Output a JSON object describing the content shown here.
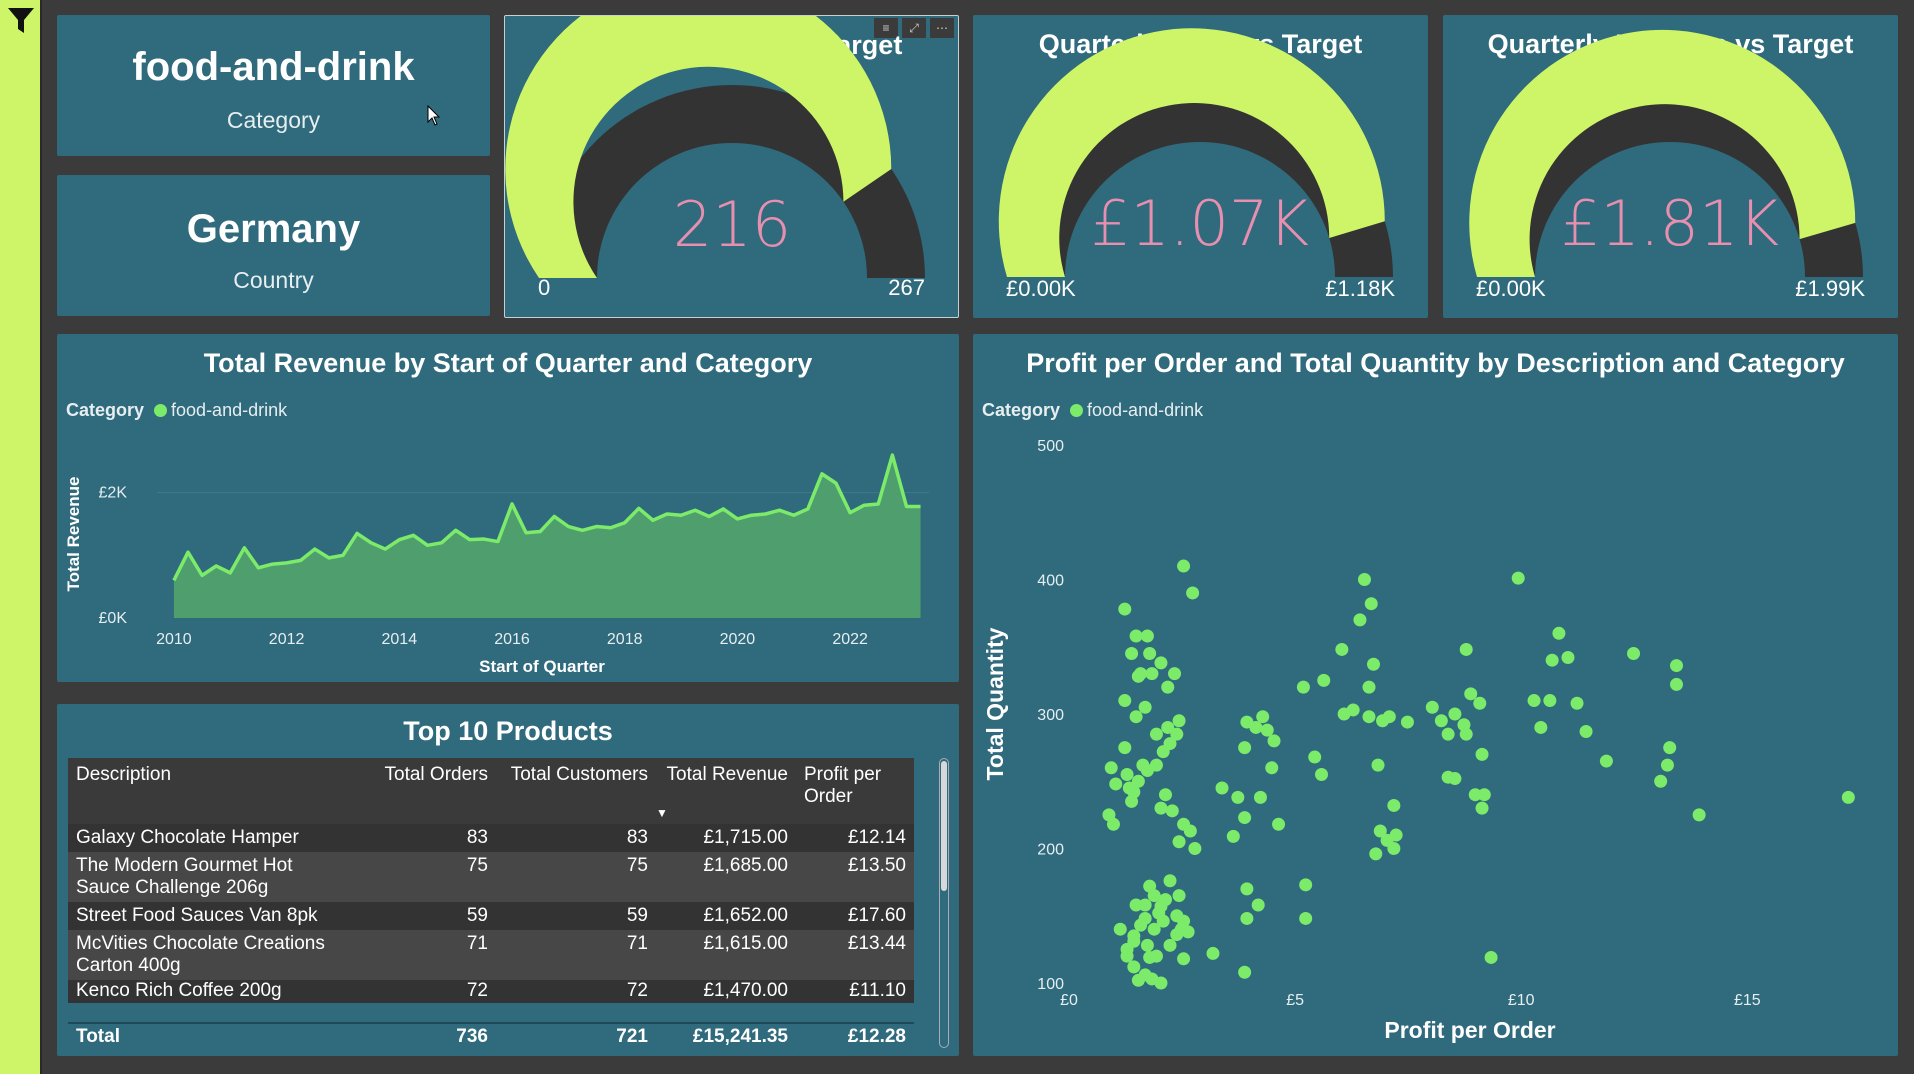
{
  "kpi": {
    "category_value": "food-and-drink",
    "category_label": "Category",
    "country_value": "Germany",
    "country_label": "Country"
  },
  "gauges": [
    {
      "title": "Quarterly Orders vs Target",
      "value_text": "216",
      "min_text": "0",
      "max_text": "267",
      "value": 216,
      "min": 0,
      "max": 267
    },
    {
      "title": "Quarterly Profit vs Target",
      "value_text": "£1.07K",
      "min_text": "£0.00K",
      "max_text": "£1.18K",
      "value": 1.07,
      "min": 0,
      "max": 1.18
    },
    {
      "title": "Quarterly Revenue vs Target",
      "value_text": "£1.81K",
      "min_text": "£0.00K",
      "max_text": "£1.99K",
      "value": 1.81,
      "min": 0,
      "max": 1.99
    }
  ],
  "colors": {
    "accent": "#cdf567",
    "card": "#2f6a7d",
    "series": "#7ceb6a",
    "area": "#4f9e6e",
    "gauge_bg": "#333333",
    "value_pink": "#e68fae"
  },
  "area_chart": {
    "title": "Total Revenue by Start of Quarter and Category",
    "legend_title": "Category",
    "legend_item": "food-and-drink",
    "chart_data": {
      "type": "area",
      "xlabel": "Start of Quarter",
      "ylabel": "Total Revenue",
      "x_ticks": [
        "2010",
        "2012",
        "2014",
        "2016",
        "2018",
        "2020",
        "2022"
      ],
      "y_ticks": [
        "£0K",
        "£2K"
      ],
      "ylim": [
        0,
        3000
      ],
      "xlim": [
        2010,
        2023.25
      ],
      "x": [
        2010.0,
        2010.25,
        2010.5,
        2010.75,
        2011.0,
        2011.25,
        2011.5,
        2011.75,
        2012.0,
        2012.25,
        2012.5,
        2012.75,
        2013.0,
        2013.25,
        2013.5,
        2013.75,
        2014.0,
        2014.25,
        2014.5,
        2014.75,
        2015.0,
        2015.25,
        2015.5,
        2015.75,
        2016.0,
        2016.25,
        2016.5,
        2016.75,
        2017.0,
        2017.25,
        2017.5,
        2017.75,
        2018.0,
        2018.25,
        2018.5,
        2018.75,
        2019.0,
        2019.25,
        2019.5,
        2019.75,
        2020.0,
        2020.25,
        2020.5,
        2020.75,
        2021.0,
        2021.25,
        2021.5,
        2021.75,
        2022.0,
        2022.25,
        2022.5,
        2022.75,
        2023.0,
        2023.25
      ],
      "series": [
        {
          "name": "food-and-drink",
          "values": [
            600,
            1050,
            680,
            830,
            720,
            1120,
            800,
            860,
            880,
            920,
            1100,
            960,
            1000,
            1350,
            1200,
            1100,
            1250,
            1320,
            1160,
            1200,
            1400,
            1250,
            1260,
            1220,
            1820,
            1360,
            1380,
            1620,
            1460,
            1400,
            1460,
            1440,
            1520,
            1750,
            1560,
            1660,
            1640,
            1720,
            1620,
            1740,
            1580,
            1640,
            1660,
            1720,
            1640,
            1740,
            2300,
            2150,
            1680,
            1800,
            1820,
            2600,
            1780,
            1780
          ]
        }
      ]
    }
  },
  "scatter": {
    "title": "Profit per Order and Total Quantity by Description and Category",
    "legend_title": "Category",
    "legend_item": "food-and-drink",
    "chart_data": {
      "type": "scatter",
      "xlabel": "Profit per Order",
      "ylabel": "Total Quantity",
      "x_ticks": [
        "£0",
        "£5",
        "£10",
        "£15"
      ],
      "y_ticks": [
        "100",
        "200",
        "300",
        "400",
        "500"
      ],
      "xlim": [
        0,
        18
      ],
      "ylim": [
        100,
        500
      ],
      "points": [
        [
          1.1,
          248
        ],
        [
          1.05,
          218
        ],
        [
          1.3,
          378
        ],
        [
          1.55,
          358
        ],
        [
          1.45,
          345
        ],
        [
          1.8,
          358
        ],
        [
          1.9,
          330
        ],
        [
          1.65,
          330
        ],
        [
          1.3,
          275
        ],
        [
          1.3,
          310
        ],
        [
          1.55,
          298
        ],
        [
          1.75,
          305
        ],
        [
          1.35,
          255
        ],
        [
          1.5,
          242
        ],
        [
          1.6,
          250
        ],
        [
          1.7,
          262
        ],
        [
          1.8,
          258
        ],
        [
          2.0,
          262
        ],
        [
          2.15,
          272
        ],
        [
          2.3,
          278
        ],
        [
          2.45,
          285
        ],
        [
          2.0,
          285
        ],
        [
          2.25,
          290
        ],
        [
          2.5,
          295
        ],
        [
          2.1,
          338
        ],
        [
          2.25,
          320
        ],
        [
          2.4,
          330
        ],
        [
          2.6,
          410
        ],
        [
          2.8,
          390
        ],
        [
          1.6,
          328
        ],
        [
          1.85,
          345
        ],
        [
          1.4,
          245
        ],
        [
          1.45,
          235
        ],
        [
          2.35,
          228
        ],
        [
          2.2,
          240
        ],
        [
          2.1,
          230
        ],
        [
          2.6,
          218
        ],
        [
          2.75,
          213
        ],
        [
          2.5,
          205
        ],
        [
          2.85,
          200
        ],
        [
          1.2,
          140
        ],
        [
          1.5,
          135
        ],
        [
          1.65,
          143
        ],
        [
          1.8,
          128
        ],
        [
          1.35,
          120
        ],
        [
          1.5,
          112
        ],
        [
          1.75,
          106
        ],
        [
          1.6,
          102
        ],
        [
          2.0,
          120
        ],
        [
          2.3,
          128
        ],
        [
          2.45,
          136
        ],
        [
          2.15,
          146
        ],
        [
          1.95,
          140
        ],
        [
          2.05,
          152
        ],
        [
          2.45,
          150
        ],
        [
          2.6,
          146
        ],
        [
          1.55,
          158
        ],
        [
          1.75,
          158
        ],
        [
          1.85,
          172
        ],
        [
          1.95,
          165
        ],
        [
          2.1,
          157
        ],
        [
          2.2,
          162
        ],
        [
          2.3,
          176
        ],
        [
          2.5,
          165
        ],
        [
          2.55,
          140
        ],
        [
          2.7,
          138
        ],
        [
          1.85,
          119
        ],
        [
          1.5,
          131
        ],
        [
          1.75,
          148
        ],
        [
          1.35,
          125
        ],
        [
          1.9,
          103
        ],
        [
          2.1,
          100
        ],
        [
          2.6,
          118
        ],
        [
          3.25,
          122
        ],
        [
          3.95,
          108
        ],
        [
          4.0,
          148
        ],
        [
          4.25,
          158
        ],
        [
          4.0,
          170
        ],
        [
          5.3,
          173
        ],
        [
          5.3,
          148
        ],
        [
          3.7,
          209
        ],
        [
          3.95,
          223
        ],
        [
          3.8,
          238
        ],
        [
          4.3,
          238
        ],
        [
          4.7,
          218
        ],
        [
          3.45,
          245
        ],
        [
          3.95,
          275
        ],
        [
          4.2,
          290
        ],
        [
          4.45,
          288
        ],
        [
          4.55,
          260
        ],
        [
          4.0,
          294
        ],
        [
          4.35,
          298
        ],
        [
          4.6,
          280
        ],
        [
          5.5,
          268
        ],
        [
          5.65,
          255
        ],
        [
          5.25,
          320
        ],
        [
          5.7,
          325
        ],
        [
          6.15,
          300
        ],
        [
          6.35,
          303
        ],
        [
          6.7,
          298
        ],
        [
          6.1,
          348
        ],
        [
          6.5,
          370
        ],
        [
          6.7,
          320
        ],
        [
          6.8,
          337
        ],
        [
          7.15,
          298
        ],
        [
          7.0,
          295
        ],
        [
          6.9,
          262
        ],
        [
          6.6,
          400
        ],
        [
          6.75,
          382
        ],
        [
          7.1,
          206
        ],
        [
          7.25,
          200
        ],
        [
          7.3,
          210
        ],
        [
          7.25,
          232
        ],
        [
          6.95,
          213
        ],
        [
          6.85,
          196
        ],
        [
          7.55,
          294
        ],
        [
          8.1,
          305
        ],
        [
          8.3,
          295
        ],
        [
          8.45,
          285
        ],
        [
          8.6,
          300
        ],
        [
          8.8,
          292
        ],
        [
          8.85,
          348
        ],
        [
          8.95,
          315
        ],
        [
          8.85,
          285
        ],
        [
          8.6,
          252
        ],
        [
          8.45,
          253
        ],
        [
          9.2,
          270
        ],
        [
          9.15,
          308
        ],
        [
          9.25,
          240
        ],
        [
          9.4,
          119
        ],
        [
          10.0,
          401
        ],
        [
          9.2,
          230
        ],
        [
          9.05,
          240
        ],
        [
          10.5,
          290
        ],
        [
          10.35,
          310
        ],
        [
          10.7,
          310
        ],
        [
          10.9,
          360
        ],
        [
          10.75,
          340
        ],
        [
          11.1,
          342
        ],
        [
          11.3,
          308
        ],
        [
          11.5,
          287
        ],
        [
          11.95,
          265
        ],
        [
          12.55,
          345
        ],
        [
          13.15,
          250
        ],
        [
          13.3,
          262
        ],
        [
          13.35,
          275
        ],
        [
          14.0,
          225
        ],
        [
          13.5,
          336
        ],
        [
          13.5,
          322
        ],
        [
          17.3,
          238
        ],
        [
          1.0,
          260
        ],
        [
          0.95,
          225
        ]
      ]
    }
  },
  "table": {
    "title": "Top 10 Products",
    "headers": [
      "Description",
      "Total Orders",
      "Total Customers",
      "Total Revenue",
      "Profit per Order"
    ],
    "rows": [
      [
        "Galaxy Chocolate Hamper",
        "83",
        "83",
        "£1,715.00",
        "£12.14"
      ],
      [
        "The Modern Gourmet Hot Sauce Challenge 206g",
        "75",
        "75",
        "£1,685.00",
        "£13.50"
      ],
      [
        "Street Food Sauces Van 8pk",
        "59",
        "59",
        "£1,652.00",
        "£17.60"
      ],
      [
        "McVities Chocolate Creations Carton 400g",
        "71",
        "71",
        "£1,615.00",
        "£13.44"
      ],
      [
        "Kenco Rich Coffee 200g",
        "72",
        "72",
        "£1,470.00",
        "£11.10"
      ]
    ],
    "total": [
      "Total",
      "736",
      "721",
      "£15,241.35",
      "£12.28"
    ],
    "sort_indicator": "▼"
  }
}
